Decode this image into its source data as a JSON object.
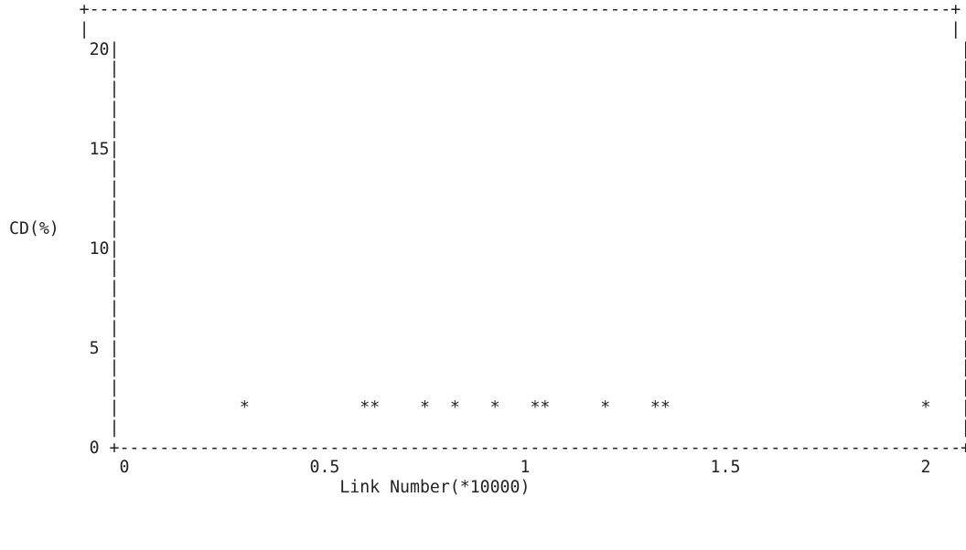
{
  "chart_data": {
    "type": "scatter",
    "title": "",
    "xlabel": "Link Number(*10000)",
    "ylabel": "CD(%)",
    "xlim": [
      0,
      2
    ],
    "ylim": [
      0,
      20
    ],
    "xticks": [
      "0",
      "0.5",
      "1",
      "1.5",
      "2"
    ],
    "yticks": [
      "0",
      "5",
      "10",
      "15",
      "20"
    ],
    "marker": "*",
    "points": [
      {
        "x": 0.29,
        "y": 2
      },
      {
        "x": 0.6,
        "y": 2
      },
      {
        "x": 0.63,
        "y": 2
      },
      {
        "x": 0.75,
        "y": 2
      },
      {
        "x": 0.82,
        "y": 2
      },
      {
        "x": 0.93,
        "y": 2
      },
      {
        "x": 1.03,
        "y": 2
      },
      {
        "x": 1.06,
        "y": 2
      },
      {
        "x": 1.21,
        "y": 2
      },
      {
        "x": 1.32,
        "y": 2
      },
      {
        "x": 1.35,
        "y": 2
      },
      {
        "x": 2.0,
        "y": 2
      }
    ]
  }
}
